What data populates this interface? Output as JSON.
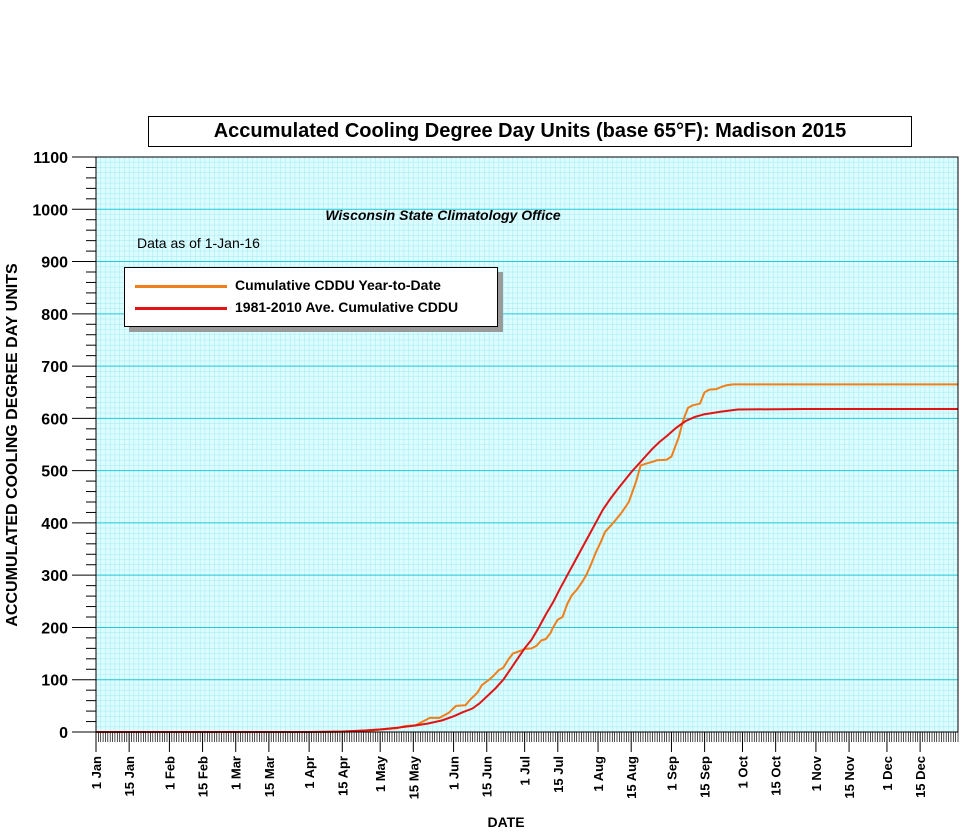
{
  "colors": {
    "plot_background": "#ddfcff",
    "minor_grid": "#a8eef4",
    "major_grid": "#23c8d8",
    "series_ytd": "#f07f1a",
    "series_avg": "#e01414"
  },
  "chart_data": {
    "type": "line",
    "title": "Accumulated Cooling Degree Day Units (base 65°F): Madison 2015",
    "subtitle": "Wisconsin State Climatology Office",
    "note": "Data as of 1-Jan-16",
    "xlabel": "DATE",
    "ylabel": "ACCUMULATED COOLING DEGREE DAY UNITS",
    "x_unit": "day of year",
    "xlim": [
      1,
      365
    ],
    "ylim": [
      0,
      1100
    ],
    "yticks": [
      0,
      100,
      200,
      300,
      400,
      500,
      600,
      700,
      800,
      900,
      1000,
      1100
    ],
    "xticks": [
      {
        "day": 1,
        "label": "1 Jan"
      },
      {
        "day": 15,
        "label": "15 Jan"
      },
      {
        "day": 32,
        "label": "1 Feb"
      },
      {
        "day": 46,
        "label": "15 Feb"
      },
      {
        "day": 60,
        "label": "1 Mar"
      },
      {
        "day": 74,
        "label": "15 Mar"
      },
      {
        "day": 91,
        "label": "1 Apr"
      },
      {
        "day": 105,
        "label": "15 Apr"
      },
      {
        "day": 121,
        "label": "1 May"
      },
      {
        "day": 135,
        "label": "15 May"
      },
      {
        "day": 152,
        "label": "1 Jun"
      },
      {
        "day": 166,
        "label": "15 Jun"
      },
      {
        "day": 182,
        "label": "1 Jul"
      },
      {
        "day": 196,
        "label": "15 Jul"
      },
      {
        "day": 213,
        "label": "1 Aug"
      },
      {
        "day": 227,
        "label": "15 Aug"
      },
      {
        "day": 244,
        "label": "1 Sep"
      },
      {
        "day": 258,
        "label": "15 Sep"
      },
      {
        "day": 274,
        "label": "1 Oct"
      },
      {
        "day": 288,
        "label": "15 Oct"
      },
      {
        "day": 305,
        "label": "1 Nov"
      },
      {
        "day": 319,
        "label": "15 Nov"
      },
      {
        "day": 335,
        "label": "1 Dec"
      },
      {
        "day": 349,
        "label": "15 Dec"
      }
    ],
    "grid": true,
    "legend_position": "upper-left",
    "series": [
      {
        "name": "Cumulative CDDU Year-to-Date",
        "color": "#f07f1a",
        "points": [
          [
            1,
            0
          ],
          [
            100,
            0
          ],
          [
            110,
            1
          ],
          [
            118,
            3
          ],
          [
            122,
            5
          ],
          [
            128,
            7
          ],
          [
            131,
            11
          ],
          [
            136,
            13
          ],
          [
            139,
            20
          ],
          [
            142,
            27
          ],
          [
            146,
            27
          ],
          [
            150,
            37
          ],
          [
            153,
            50
          ],
          [
            157,
            51
          ],
          [
            159,
            62
          ],
          [
            162,
            75
          ],
          [
            164,
            90
          ],
          [
            167,
            100
          ],
          [
            169,
            108
          ],
          [
            171,
            118
          ],
          [
            173,
            123
          ],
          [
            175,
            138
          ],
          [
            177,
            150
          ],
          [
            180,
            155
          ],
          [
            182,
            159
          ],
          [
            185,
            160
          ],
          [
            187,
            165
          ],
          [
            189,
            175
          ],
          [
            191,
            178
          ],
          [
            193,
            190
          ],
          [
            194,
            200
          ],
          [
            196,
            215
          ],
          [
            198,
            220
          ],
          [
            200,
            245
          ],
          [
            202,
            262
          ],
          [
            204,
            272
          ],
          [
            206,
            285
          ],
          [
            208,
            300
          ],
          [
            210,
            320
          ],
          [
            212,
            343
          ],
          [
            214,
            362
          ],
          [
            216,
            383
          ],
          [
            218,
            393
          ],
          [
            220,
            403
          ],
          [
            223,
            420
          ],
          [
            226,
            440
          ],
          [
            229,
            478
          ],
          [
            231,
            510
          ],
          [
            233,
            513
          ],
          [
            236,
            517
          ],
          [
            238,
            520
          ],
          [
            242,
            521
          ],
          [
            244,
            527
          ],
          [
            247,
            563
          ],
          [
            249,
            597
          ],
          [
            251,
            620
          ],
          [
            253,
            625
          ],
          [
            256,
            628
          ],
          [
            258,
            650
          ],
          [
            260,
            655
          ],
          [
            263,
            656
          ],
          [
            265,
            660
          ],
          [
            267,
            663
          ],
          [
            270,
            665
          ],
          [
            365,
            665
          ]
        ]
      },
      {
        "name": "1981-2010 Ave. Cumulative CDDU",
        "color": "#e01414",
        "points": [
          [
            1,
            0
          ],
          [
            91,
            0
          ],
          [
            105,
            1
          ],
          [
            115,
            3
          ],
          [
            121,
            5
          ],
          [
            128,
            8
          ],
          [
            135,
            12
          ],
          [
            141,
            16
          ],
          [
            147,
            22
          ],
          [
            152,
            30
          ],
          [
            156,
            38
          ],
          [
            160,
            45
          ],
          [
            163,
            55
          ],
          [
            167,
            72
          ],
          [
            170,
            85
          ],
          [
            173,
            100
          ],
          [
            176,
            120
          ],
          [
            179,
            140
          ],
          [
            182,
            160
          ],
          [
            185,
            177
          ],
          [
            188,
            200
          ],
          [
            191,
            225
          ],
          [
            194,
            248
          ],
          [
            197,
            275
          ],
          [
            200,
            300
          ],
          [
            203,
            325
          ],
          [
            206,
            350
          ],
          [
            209,
            375
          ],
          [
            212,
            400
          ],
          [
            215,
            425
          ],
          [
            218,
            445
          ],
          [
            221,
            463
          ],
          [
            224,
            480
          ],
          [
            227,
            497
          ],
          [
            230,
            512
          ],
          [
            233,
            527
          ],
          [
            236,
            542
          ],
          [
            239,
            555
          ],
          [
            242,
            566
          ],
          [
            246,
            582
          ],
          [
            250,
            595
          ],
          [
            254,
            603
          ],
          [
            258,
            608
          ],
          [
            265,
            613
          ],
          [
            272,
            617
          ],
          [
            300,
            618
          ],
          [
            365,
            618
          ]
        ]
      }
    ]
  }
}
